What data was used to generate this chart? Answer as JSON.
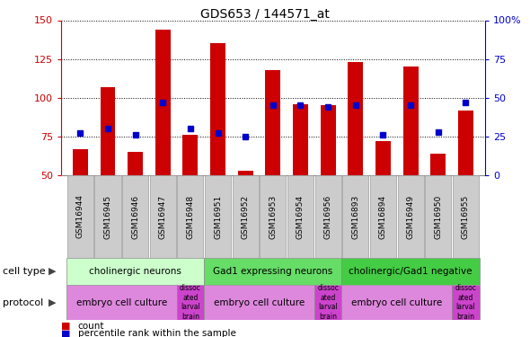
{
  "title": "GDS653 / 144571_at",
  "samples": [
    "GSM16944",
    "GSM16945",
    "GSM16946",
    "GSM16947",
    "GSM16948",
    "GSM16951",
    "GSM16952",
    "GSM16953",
    "GSM16954",
    "GSM16956",
    "GSM16893",
    "GSM16894",
    "GSM16949",
    "GSM16950",
    "GSM16955"
  ],
  "counts": [
    67,
    107,
    65,
    144,
    76,
    135,
    53,
    118,
    96,
    95,
    123,
    72,
    120,
    64,
    92
  ],
  "percentile": [
    27,
    30,
    26,
    47,
    30,
    27,
    25,
    45,
    45,
    44,
    45,
    26,
    45,
    28,
    47
  ],
  "ylim_left": [
    50,
    150
  ],
  "ylim_right": [
    0,
    100
  ],
  "yticks_left": [
    50,
    75,
    100,
    125,
    150
  ],
  "yticks_right": [
    0,
    25,
    50,
    75,
    100
  ],
  "cell_type_groups": [
    {
      "label": "cholinergic neurons",
      "start": 0,
      "end": 5,
      "color": "#ccffcc"
    },
    {
      "label": "Gad1 expressing neurons",
      "start": 5,
      "end": 10,
      "color": "#66dd66"
    },
    {
      "label": "cholinergic/Gad1 negative",
      "start": 10,
      "end": 15,
      "color": "#44cc44"
    }
  ],
  "protocol_groups": [
    {
      "label": "embryo cell culture",
      "start": 0,
      "end": 4,
      "color": "#dd88dd"
    },
    {
      "label": "dissoc\nated\nlarval\nbrain",
      "start": 4,
      "end": 5,
      "color": "#cc44cc"
    },
    {
      "label": "embryo cell culture",
      "start": 5,
      "end": 9,
      "color": "#dd88dd"
    },
    {
      "label": "dissoc\nated\nlarval\nbrain",
      "start": 9,
      "end": 10,
      "color": "#cc44cc"
    },
    {
      "label": "embryo cell culture",
      "start": 10,
      "end": 14,
      "color": "#dd88dd"
    },
    {
      "label": "dissoc\nated\nlarval\nbrain",
      "start": 14,
      "end": 15,
      "color": "#cc44cc"
    }
  ],
  "bar_color": "#cc0000",
  "dot_color": "#0000cc",
  "left_axis_color": "#cc0000",
  "right_axis_color": "#0000cc",
  "plot_bg": "#ffffff",
  "sample_box_color": "#cccccc",
  "sample_box_edge": "#999999"
}
